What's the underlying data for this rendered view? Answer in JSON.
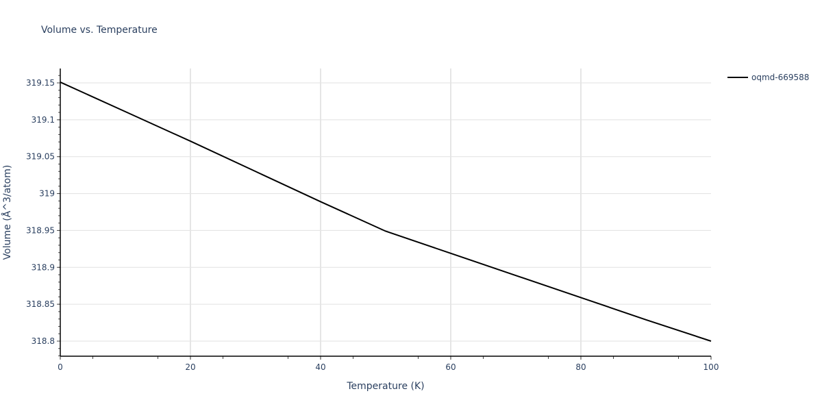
{
  "chart_data": {
    "type": "line",
    "title": "Volume vs. Temperature",
    "xlabel": "Temperature (K)",
    "ylabel": "Volume (Å^3/atom)",
    "xlim": [
      0,
      100
    ],
    "ylim": [
      318.78,
      319.17
    ],
    "x_ticks": [
      "0",
      "20",
      "40",
      "60",
      "80",
      "100"
    ],
    "y_ticks": [
      "318.8",
      "318.85",
      "318.9",
      "318.95",
      "319",
      "319.05",
      "319.1",
      "319.15"
    ],
    "grid": true,
    "legend_position": "top-right outside",
    "series": [
      {
        "name": "oqmd-669588",
        "color": "#000000",
        "x": [
          0,
          10,
          20,
          30,
          40,
          50,
          60,
          70,
          80,
          90,
          100
        ],
        "y": [
          319.151,
          319.111,
          319.071,
          319.03,
          318.989,
          318.949,
          318.919,
          318.889,
          318.859,
          318.829,
          318.8
        ]
      }
    ]
  },
  "legend": {
    "items": [
      {
        "label": "oqmd-669588",
        "color": "#000000"
      }
    ]
  }
}
